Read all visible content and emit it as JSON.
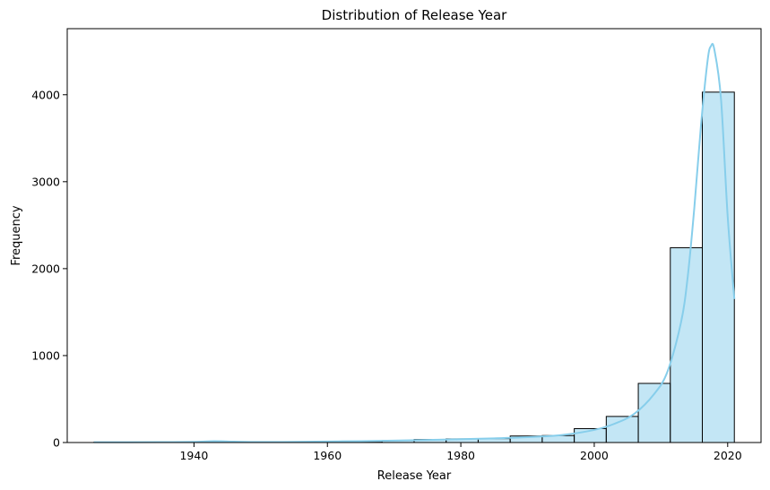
{
  "chart_data": {
    "type": "bar",
    "title": "Distribution of Release Year",
    "xlabel": "Release Year",
    "ylabel": "Frequency",
    "xlim": [
      1921,
      2025
    ],
    "ylim": [
      0,
      4760
    ],
    "xticks": [
      1940,
      1960,
      1980,
      2000,
      2020
    ],
    "yticks": [
      0,
      1000,
      2000,
      3000,
      4000
    ],
    "grid": false,
    "legend": "none",
    "bar_color": "#87ceeb",
    "bar_alpha": 0.5,
    "edge_color": "#000000",
    "kde_color": "#87ceeb",
    "bins": [
      {
        "x0": 1925.0,
        "x1": 1929.8,
        "value": 3
      },
      {
        "x0": 1929.8,
        "x1": 1934.6,
        "value": 2
      },
      {
        "x0": 1934.6,
        "x1": 1939.4,
        "value": 3
      },
      {
        "x0": 1939.4,
        "x1": 1944.2,
        "value": 5
      },
      {
        "x0": 1944.2,
        "x1": 1949.0,
        "value": 6
      },
      {
        "x0": 1949.0,
        "x1": 1953.8,
        "value": 4
      },
      {
        "x0": 1953.8,
        "x1": 1958.6,
        "value": 6
      },
      {
        "x0": 1958.6,
        "x1": 1963.4,
        "value": 9
      },
      {
        "x0": 1963.4,
        "x1": 1968.2,
        "value": 12
      },
      {
        "x0": 1968.2,
        "x1": 1973.0,
        "value": 22
      },
      {
        "x0": 1973.0,
        "x1": 1977.8,
        "value": 35
      },
      {
        "x0": 1977.8,
        "x1": 1982.6,
        "value": 42
      },
      {
        "x0": 1982.6,
        "x1": 1987.4,
        "value": 45
      },
      {
        "x0": 1987.4,
        "x1": 1992.2,
        "value": 75
      },
      {
        "x0": 1992.2,
        "x1": 1997.0,
        "value": 80
      },
      {
        "x0": 1997.0,
        "x1": 2001.8,
        "value": 160
      },
      {
        "x0": 2001.8,
        "x1": 2006.6,
        "value": 300
      },
      {
        "x0": 2006.6,
        "x1": 2011.4,
        "value": 680
      },
      {
        "x0": 2011.4,
        "x1": 2016.2,
        "value": 2240
      },
      {
        "x0": 2016.2,
        "x1": 2021.0,
        "value": 4030
      }
    ],
    "kde": {
      "x": [
        1925,
        1930,
        1935,
        1940,
        1943,
        1946,
        1950,
        1955,
        1960,
        1965,
        1970,
        1975,
        1980,
        1985,
        1990,
        1995,
        2000,
        2003,
        2006,
        2009,
        2011,
        2013,
        2014,
        2015,
        2016,
        2017,
        2017.5,
        2018,
        2019,
        2020,
        2021
      ],
      "y": [
        4,
        4,
        5,
        8,
        15,
        10,
        6,
        8,
        12,
        16,
        22,
        30,
        38,
        48,
        62,
        85,
        145,
        215,
        330,
        560,
        820,
        1380,
        1900,
        2700,
        3650,
        4400,
        4560,
        4520,
        3950,
        2600,
        1650
      ]
    }
  }
}
